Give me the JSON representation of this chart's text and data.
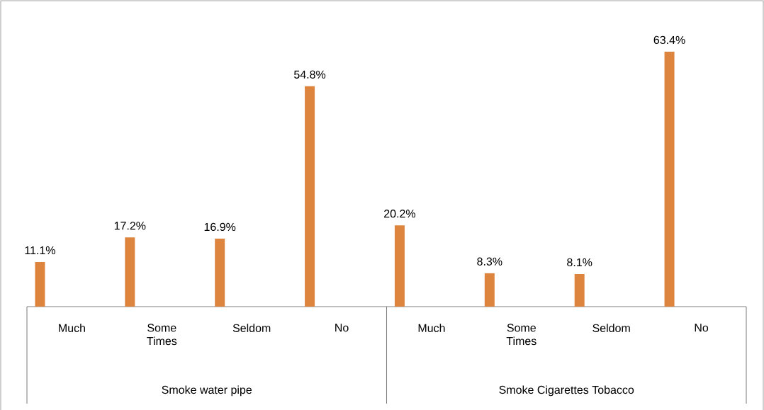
{
  "chart_data": {
    "type": "bar",
    "categories": [
      "Much",
      "Some Times",
      "Seldom",
      "No",
      "Much",
      "Some Times",
      "Seldom",
      "No"
    ],
    "values": [
      11.1,
      17.2,
      16.9,
      54.8,
      20.2,
      8.3,
      8.1,
      63.4
    ],
    "value_labels": [
      "11.1%",
      "17.2%",
      "16.9%",
      "54.8%",
      "20.2%",
      "8.3%",
      "8.1%",
      "63.4%"
    ],
    "color": "#dd843e",
    "annotations": [
      "Smoke water pipe",
      "Smoke Cigarettes Tobacco"
    ]
  }
}
